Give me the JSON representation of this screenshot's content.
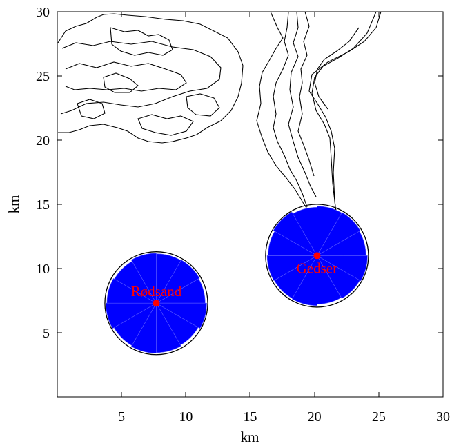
{
  "chart_data": {
    "type": "map",
    "xlabel": "km",
    "ylabel": "km",
    "xlim": [
      0,
      30
    ],
    "ylim": [
      0,
      30
    ],
    "xticks": [
      5,
      10,
      15,
      20,
      25,
      30
    ],
    "yticks": [
      5,
      10,
      15,
      20,
      25,
      30
    ],
    "sites": [
      {
        "name": "Rødsand",
        "x": 7.7,
        "y": 7.3,
        "radius_km": 4.0
      },
      {
        "name": "Gedser",
        "x": 20.2,
        "y": 11.0,
        "radius_km": 4.0
      }
    ],
    "colors": {
      "footprint": "#0000ff",
      "site_marker": "#ff0000",
      "site_label": "#ff0000",
      "coastline": "#000000"
    }
  }
}
